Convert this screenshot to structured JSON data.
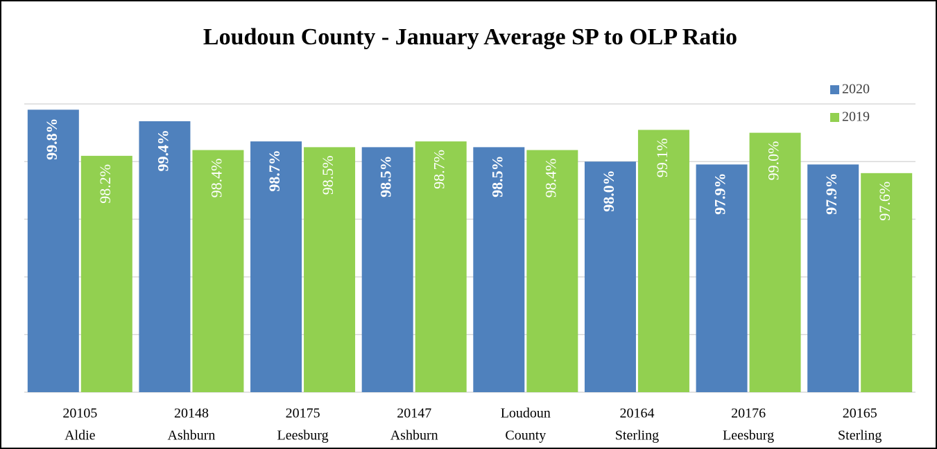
{
  "chart_data": {
    "type": "bar",
    "title": "Loudoun County - January Average SP to OLP Ratio",
    "categories": [
      [
        "20105",
        "Aldie"
      ],
      [
        "20148",
        "Ashburn"
      ],
      [
        "20175",
        "Leesburg"
      ],
      [
        "20147",
        "Ashburn"
      ],
      [
        "Loudoun",
        "County"
      ],
      [
        "20164",
        "Sterling"
      ],
      [
        "20176",
        "Leesburg"
      ],
      [
        "20165",
        "Sterling"
      ]
    ],
    "series": [
      {
        "name": "2020",
        "color": "#4f81bd",
        "values": [
          99.8,
          99.4,
          98.7,
          98.5,
          98.5,
          98.0,
          97.9,
          97.9
        ],
        "value_labels": [
          "99.8%",
          "99.4%",
          "98.7%",
          "98.5%",
          "98.5%",
          "98.0%",
          "97.9%",
          "97.9%"
        ]
      },
      {
        "name": "2019",
        "color": "#92d050",
        "values": [
          98.2,
          98.4,
          98.5,
          98.7,
          98.4,
          99.1,
          99.0,
          97.6
        ],
        "value_labels": [
          "98.2%",
          "98.4%",
          "98.5%",
          "98.7%",
          "98.4%",
          "99.1%",
          "99.0%",
          "97.6%"
        ]
      }
    ],
    "ylim": [
      90,
      100
    ],
    "yticks": [
      90,
      92,
      94,
      96,
      98,
      100
    ],
    "grid": true,
    "legend": "top-right"
  }
}
